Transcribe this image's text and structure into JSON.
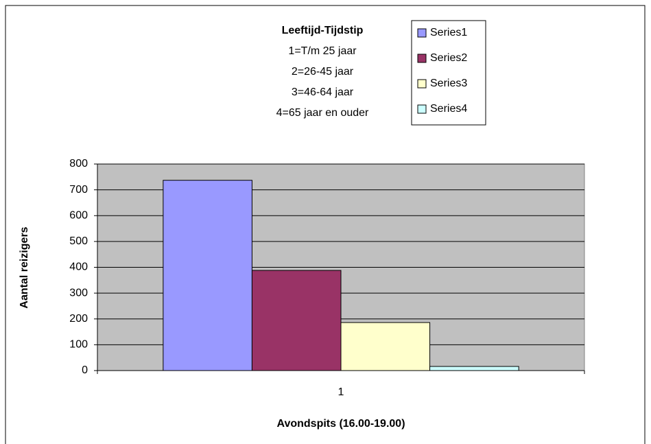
{
  "chart_data": {
    "type": "bar",
    "title": "Leeftijd-Tijdstip",
    "subtitle": [
      "1=T/m 25 jaar",
      "2=26-45 jaar",
      "3=46-64 jaar",
      "4=65 jaar en ouder"
    ],
    "x_label": "Avondspits (16.00-19.00)",
    "y_label": "Aantal reizigers",
    "categories": [
      "1"
    ],
    "series": [
      {
        "name": "Series1",
        "color": "#9999ff",
        "values": [
          737
        ]
      },
      {
        "name": "Series2",
        "color": "#993366",
        "values": [
          388
        ]
      },
      {
        "name": "Series3",
        "color": "#ffffcc",
        "values": [
          186
        ]
      },
      {
        "name": "Series4",
        "color": "#ccffff",
        "values": [
          16
        ]
      }
    ],
    "ylim": [
      0,
      800
    ],
    "yticks": [
      0,
      100,
      200,
      300,
      400,
      500,
      600,
      700,
      800
    ],
    "grid": true,
    "plot_background": "#c0c0c0",
    "legend": "top-right"
  }
}
